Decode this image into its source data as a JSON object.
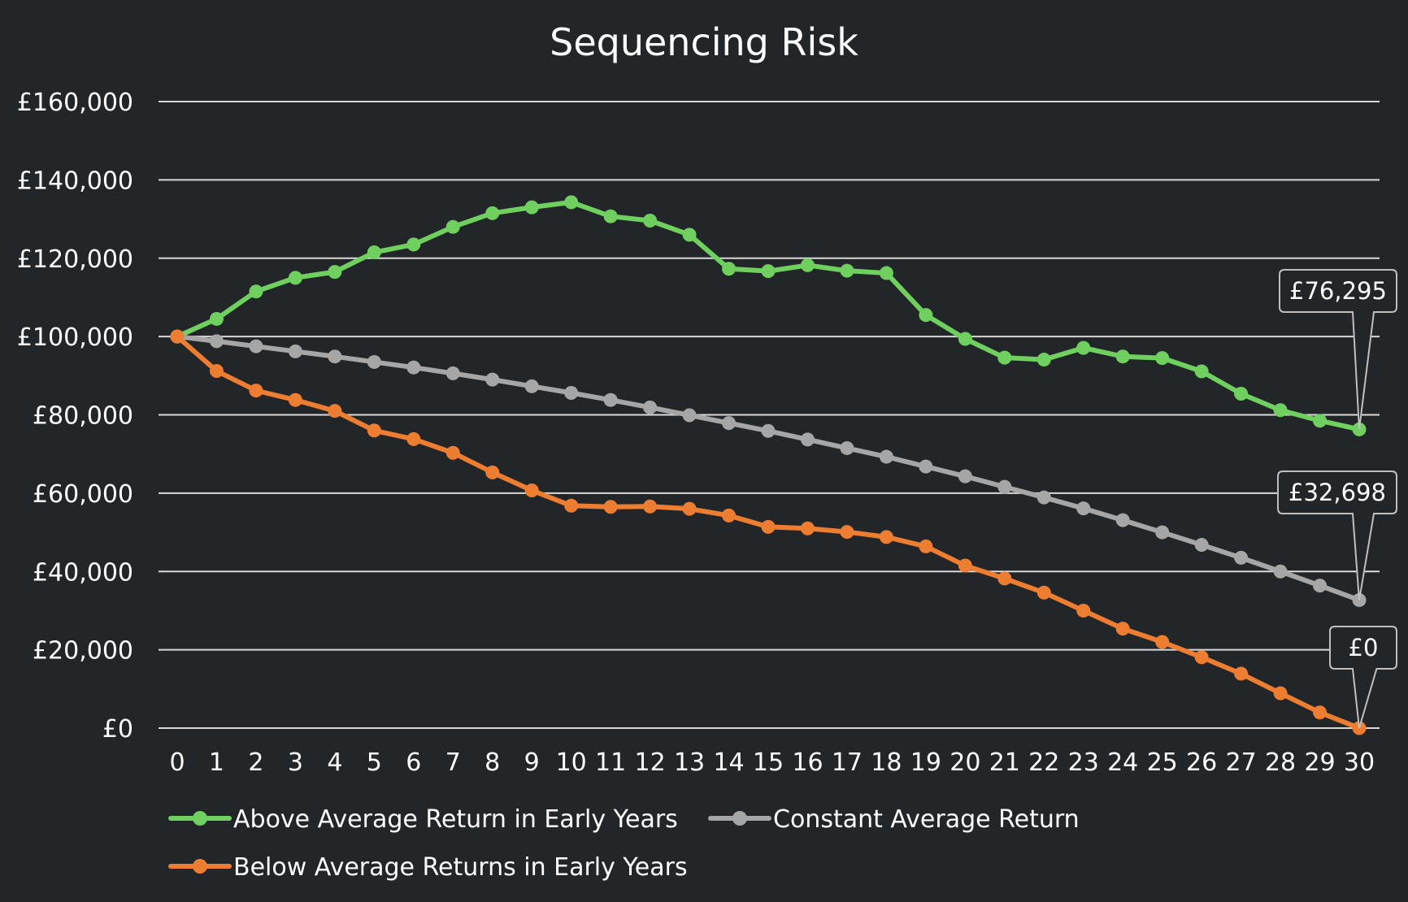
{
  "chart_data": {
    "type": "line",
    "title": "Sequencing Risk",
    "xlabel": "",
    "ylabel": "",
    "x": [
      0,
      1,
      2,
      3,
      4,
      5,
      6,
      7,
      8,
      9,
      10,
      11,
      12,
      13,
      14,
      15,
      16,
      17,
      18,
      19,
      20,
      21,
      22,
      23,
      24,
      25,
      26,
      27,
      28,
      29,
      30
    ],
    "ylim": [
      0,
      160000
    ],
    "yticks": [
      0,
      20000,
      40000,
      60000,
      80000,
      100000,
      120000,
      140000,
      160000
    ],
    "ytick_labels": [
      "£0",
      "£20,000",
      "£40,000",
      "£60,000",
      "£80,000",
      "£100,000",
      "£120,000",
      "£140,000",
      "£160,000"
    ],
    "grid": true,
    "legend_position": "bottom",
    "series": [
      {
        "name": "Above Average Return in Early Years",
        "color": "#6fcf5f",
        "values": [
          100000,
          104500,
          111500,
          115000,
          116500,
          121500,
          123500,
          128000,
          131500,
          133000,
          134300,
          130700,
          129600,
          126000,
          117300,
          116700,
          118200,
          116800,
          116200,
          105500,
          99400,
          94600,
          94100,
          97100,
          94900,
          94500,
          91100,
          85400,
          81200,
          78500,
          76295
        ]
      },
      {
        "name": "Constant Average Return",
        "color": "#a6a6a6",
        "values": [
          100000,
          98800,
          97500,
          96200,
          94900,
          93500,
          92100,
          90600,
          89000,
          87300,
          85600,
          83800,
          81900,
          79900,
          77900,
          75900,
          73700,
          71500,
          69300,
          66800,
          64300,
          61600,
          58900,
          56100,
          53100,
          50000,
          46800,
          43500,
          40000,
          36400,
          32698
        ]
      },
      {
        "name": "Below Average Returns in Early Years",
        "color": "#ed7d31",
        "values": [
          100000,
          91200,
          86200,
          83800,
          81000,
          76000,
          73800,
          70300,
          65300,
          60700,
          56800,
          56500,
          56600,
          56000,
          54300,
          51400,
          51000,
          50100,
          48800,
          46400,
          41500,
          38200,
          34600,
          30000,
          25400,
          22000,
          18100,
          13900,
          8900,
          4000,
          0
        ]
      }
    ],
    "annotations": [
      {
        "series": 0,
        "x": 30,
        "label": "£76,295"
      },
      {
        "series": 1,
        "x": 30,
        "label": "£32,698"
      },
      {
        "series": 2,
        "x": 30,
        "label": "£0"
      }
    ]
  }
}
